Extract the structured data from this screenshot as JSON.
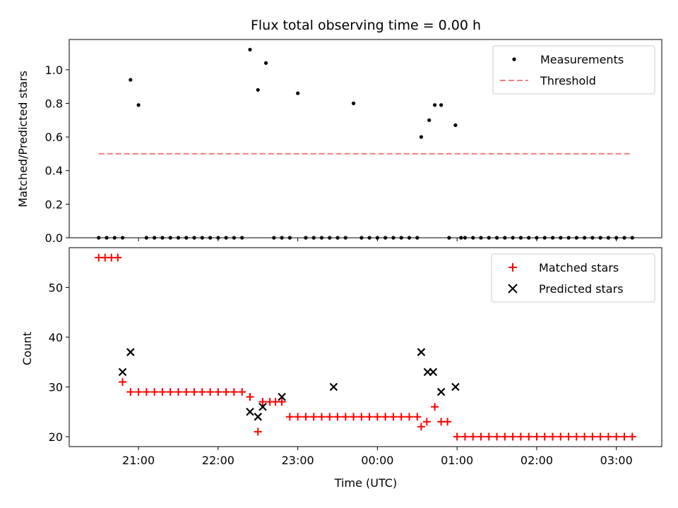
{
  "chart_data": [
    {
      "type": "scatter",
      "title": "Flux total observing time = 0.00 h",
      "xlabel": "",
      "ylabel": "Matched/Predicted stars",
      "ylim": [
        0.0,
        1.18
      ],
      "yticks": [
        "0.0",
        "0.2",
        "0.4",
        "0.6",
        "0.8",
        "1.0"
      ],
      "ytick_values": [
        0.0,
        0.2,
        0.4,
        0.6,
        0.8,
        1.0
      ],
      "legend_position": "top-right",
      "x_unit": "hours relative to 00:00 UTC",
      "series": [
        {
          "name": "Measurements",
          "marker": "dot",
          "color": "#000000",
          "x": [
            -3.5,
            -3.4,
            -3.3,
            -3.2,
            -3.1,
            -3.0,
            -2.9,
            -2.8,
            -2.7,
            -2.6,
            -2.5,
            -2.4,
            -2.3,
            -2.2,
            -2.1,
            -2.0,
            -1.9,
            -1.8,
            -1.7,
            -1.6,
            -1.5,
            -1.4,
            -1.3,
            -1.2,
            -1.1,
            -1.0,
            -0.9,
            -0.8,
            -0.7,
            -0.6,
            -0.5,
            -0.4,
            -0.3,
            -0.2,
            -0.1,
            0.0,
            0.1,
            0.2,
            0.3,
            0.4,
            0.5,
            0.55,
            0.65,
            0.72,
            0.8,
            0.9,
            0.98,
            1.05,
            1.1,
            1.2,
            1.3,
            1.4,
            1.5,
            1.6,
            1.7,
            1.8,
            1.9,
            2.0,
            2.1,
            2.2,
            2.3,
            2.4,
            2.5,
            2.6,
            2.7,
            2.8,
            2.9,
            3.0,
            3.1,
            3.2
          ],
          "y": [
            0,
            0,
            0,
            0,
            0.94,
            0.79,
            0,
            0,
            0,
            0,
            0,
            0,
            0,
            0,
            0,
            0,
            0,
            0,
            0,
            1.12,
            0.88,
            1.04,
            0,
            0,
            0,
            0.86,
            0,
            0,
            0,
            0,
            0,
            0,
            0.8,
            0,
            0,
            0,
            0,
            0,
            0,
            0,
            0,
            0.6,
            0.7,
            0.79,
            0.79,
            0,
            0.67,
            0,
            0,
            0,
            0,
            0,
            0,
            0,
            0,
            0,
            0,
            0,
            0,
            0,
            0,
            0,
            0,
            0,
            0,
            0,
            0,
            0,
            0,
            0
          ]
        },
        {
          "name": "Threshold",
          "marker": "dashed-line",
          "color": "#f08080",
          "x": [
            -3.5,
            3.2
          ],
          "y": [
            0.5,
            0.5
          ]
        }
      ]
    },
    {
      "type": "scatter",
      "title": "",
      "xlabel": "Time (UTC)",
      "ylabel": "Count",
      "ylim": [
        18,
        58
      ],
      "yticks": [
        "20",
        "30",
        "40",
        "50"
      ],
      "ytick_values": [
        20,
        30,
        40,
        50
      ],
      "xticks": [
        "21:00",
        "22:00",
        "23:00",
        "00:00",
        "01:00",
        "02:00",
        "03:00"
      ],
      "xtick_values": [
        -3,
        -2,
        -1,
        0,
        1,
        2,
        3
      ],
      "xlim": [
        -3.87,
        3.57
      ],
      "legend_position": "top-right",
      "x_unit": "hours relative to 00:00 UTC",
      "series": [
        {
          "name": "Matched stars",
          "marker": "plus",
          "color": "#ff0000",
          "x": [
            -3.5,
            -3.42,
            -3.34,
            -3.26,
            -3.2,
            -3.1,
            -3.0,
            -2.9,
            -2.8,
            -2.7,
            -2.6,
            -2.5,
            -2.4,
            -2.3,
            -2.2,
            -2.1,
            -2.0,
            -1.9,
            -1.8,
            -1.7,
            -1.6,
            -1.5,
            -1.44,
            -1.35,
            -1.28,
            -1.2,
            -1.1,
            -1.0,
            -0.9,
            -0.8,
            -0.7,
            -0.6,
            -0.5,
            -0.4,
            -0.3,
            -0.2,
            -0.1,
            0.0,
            0.1,
            0.2,
            0.3,
            0.4,
            0.5,
            0.55,
            0.62,
            0.72,
            0.8,
            0.88,
            1.0,
            1.1,
            1.2,
            1.3,
            1.4,
            1.5,
            1.6,
            1.7,
            1.8,
            1.9,
            2.0,
            2.1,
            2.2,
            2.3,
            2.4,
            2.5,
            2.6,
            2.7,
            2.8,
            2.9,
            3.0,
            3.1,
            3.2
          ],
          "y": [
            56,
            56,
            56,
            56,
            31,
            29,
            29,
            29,
            29,
            29,
            29,
            29,
            29,
            29,
            29,
            29,
            29,
            29,
            29,
            29,
            28,
            21,
            27,
            27,
            27,
            27,
            24,
            24,
            24,
            24,
            24,
            24,
            24,
            24,
            24,
            24,
            24,
            24,
            24,
            24,
            24,
            24,
            24,
            22,
            23,
            26,
            23,
            23,
            20,
            20,
            20,
            20,
            20,
            20,
            20,
            20,
            20,
            20,
            20,
            20,
            20,
            20,
            20,
            20,
            20,
            20,
            20,
            20,
            20,
            20,
            20
          ]
        },
        {
          "name": "Predicted stars",
          "marker": "x",
          "color": "#000000",
          "x": [
            -3.2,
            -3.1,
            -1.6,
            -1.5,
            -1.44,
            -1.2,
            -0.55,
            0.55,
            0.63,
            0.7,
            0.8,
            0.98
          ],
          "y": [
            33,
            37,
            25,
            24,
            26,
            28,
            30,
            37,
            33,
            33,
            29,
            30
          ]
        }
      ]
    }
  ]
}
